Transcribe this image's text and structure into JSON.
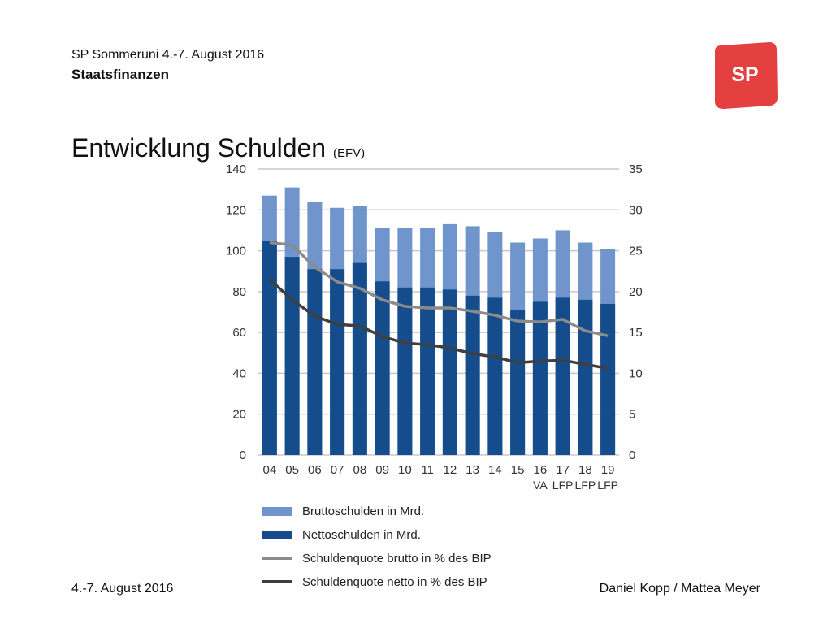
{
  "header": {
    "event": "SP Sommeruni 4.-7. August 2016",
    "topic": "Staatsfinanzen"
  },
  "logo": {
    "text": "SP",
    "color": "#e3403f"
  },
  "title": {
    "main": "Entwicklung Schulden",
    "source": "(EFV)"
  },
  "footer": {
    "date": "4.-7. August 2016",
    "authors": "Daniel Kopp / Mattea Meyer"
  },
  "chart_data": {
    "type": "bar",
    "categories": [
      "04",
      "05",
      "06",
      "07",
      "08",
      "09",
      "10",
      "11",
      "12",
      "13",
      "14",
      "15",
      "16",
      "17",
      "18",
      "19"
    ],
    "category_sublabels": [
      "",
      "",
      "",
      "",
      "",
      "",
      "",
      "",
      "",
      "",
      "",
      "",
      "VA",
      "LFP",
      "LFP",
      "LFP"
    ],
    "y_left": {
      "ylim": [
        0,
        140
      ],
      "ticks": [
        0,
        20,
        40,
        60,
        80,
        100,
        120,
        140
      ]
    },
    "y_right": {
      "ylim": [
        0,
        35
      ],
      "ticks": [
        0,
        5,
        10,
        15,
        20,
        25,
        30,
        35
      ]
    },
    "grid": true,
    "legend_placement": "bottom",
    "series": [
      {
        "name": "Bruttoschulden in Mrd.",
        "kind": "bar",
        "axis": "left",
        "color": "#6f95cc",
        "values": [
          127,
          131,
          124,
          121,
          122,
          111,
          111,
          111,
          113,
          112,
          109,
          104,
          106,
          110,
          104,
          101
        ]
      },
      {
        "name": "Nettoschulden in Mrd.",
        "kind": "bar",
        "axis": "left",
        "color": "#144c8c",
        "values": [
          105,
          97,
          91,
          91,
          94,
          85,
          82,
          82,
          81,
          78,
          77,
          71,
          75,
          77,
          76,
          74
        ]
      },
      {
        "name": "Schuldenquote brutto in % des BIP",
        "kind": "line",
        "axis": "right",
        "color": "#8b8b8b",
        "values": [
          26,
          25.7,
          23,
          21.2,
          20.4,
          19,
          18.2,
          18,
          18,
          17.6,
          17.1,
          16.4,
          16.3,
          16.6,
          15.2,
          14.6
        ]
      },
      {
        "name": "Schuldenquote netto in % des BIP",
        "kind": "line",
        "axis": "right",
        "color": "#3f3f3f",
        "values": [
          21.5,
          19,
          17,
          16,
          15.8,
          14.5,
          13.7,
          13.5,
          13.1,
          12.4,
          12,
          11.3,
          11.5,
          11.6,
          11.1,
          10.6
        ]
      }
    ]
  }
}
